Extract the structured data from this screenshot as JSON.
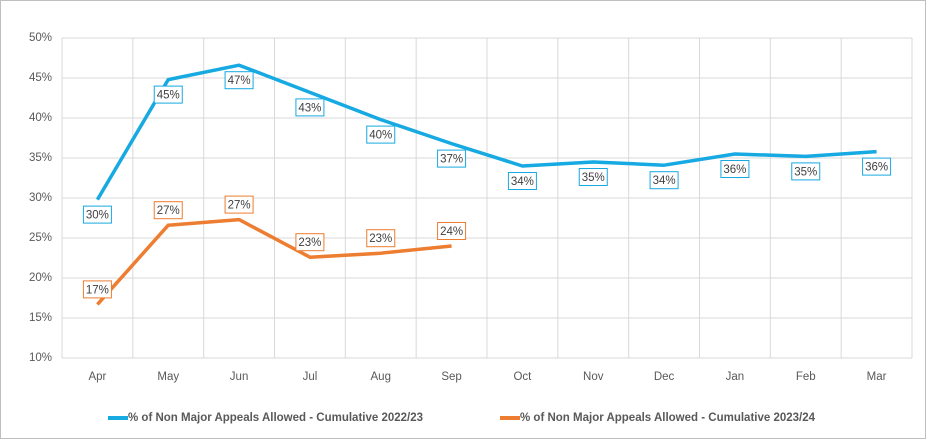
{
  "chart_data": {
    "type": "line",
    "categories": [
      "Apr",
      "May",
      "Jun",
      "Jul",
      "Aug",
      "Sep",
      "Oct",
      "Nov",
      "Dec",
      "Jan",
      "Feb",
      "Mar"
    ],
    "series": [
      {
        "name": "% of Non Major Appeals Allowed - Cumulative 2022/23",
        "color": "#17a9e1",
        "values": [
          29.8,
          44.8,
          46.6,
          43.2,
          39.8,
          36.8,
          34.0,
          34.5,
          34.1,
          35.5,
          35.2,
          35.8
        ],
        "value_labels": [
          "30%",
          "45%",
          "47%",
          "43%",
          "40%",
          "37%",
          "34%",
          "35%",
          "34%",
          "36%",
          "35%",
          "36%"
        ]
      },
      {
        "name": "% of Non Major Appeals Allowed - Cumulative 2023/24",
        "color": "#ed7d31",
        "values": [
          16.7,
          26.6,
          27.3,
          22.6,
          23.1,
          24.0,
          null,
          null,
          null,
          null,
          null,
          null
        ],
        "value_labels": [
          "17%",
          "27%",
          "27%",
          "23%",
          "23%",
          "24%",
          null,
          null,
          null,
          null,
          null,
          null
        ]
      }
    ],
    "ylim": [
      10,
      50
    ],
    "yticks": [
      {
        "value": 10,
        "label": "10%"
      },
      {
        "value": 15,
        "label": "15%"
      },
      {
        "value": 20,
        "label": "20%"
      },
      {
        "value": 25,
        "label": "25%"
      },
      {
        "value": 30,
        "label": "30%"
      },
      {
        "value": 35,
        "label": "35%"
      },
      {
        "value": 40,
        "label": "40%"
      },
      {
        "value": 45,
        "label": "45%"
      },
      {
        "value": 50,
        "label": "50%"
      }
    ],
    "grid": true,
    "legend": "bottom"
  }
}
